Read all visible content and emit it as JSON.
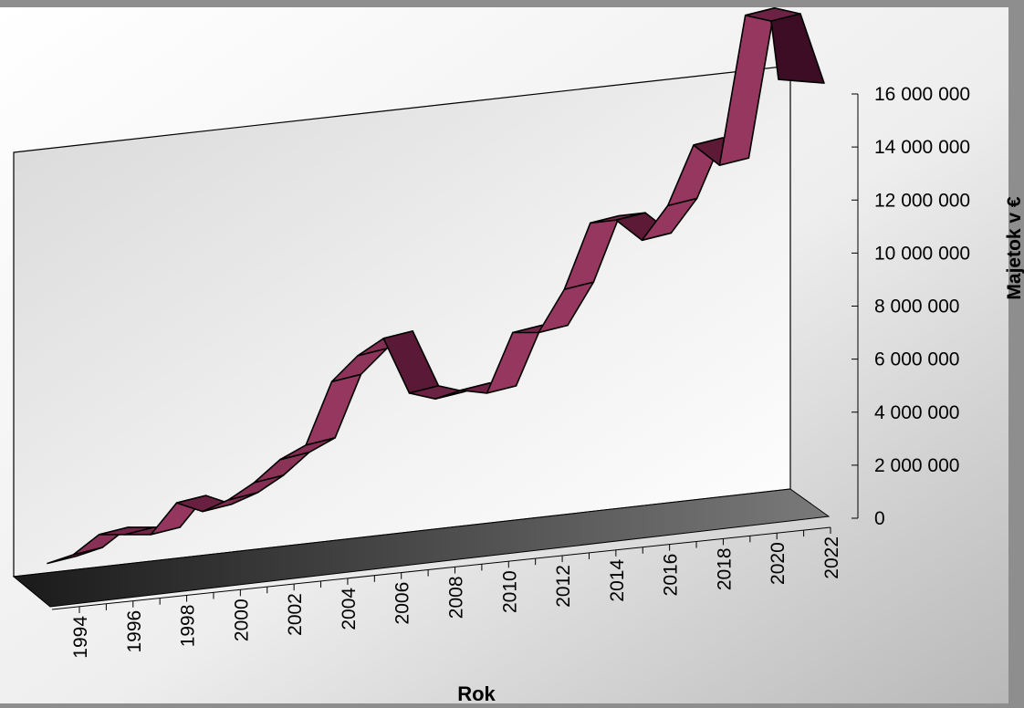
{
  "chart_data": {
    "type": "line",
    "style": "3d-ribbon",
    "x_title": "Rok",
    "y_title": "Majetok v €",
    "x": [
      1994,
      1995,
      1996,
      1997,
      1998,
      1999,
      2000,
      2001,
      2002,
      2003,
      2004,
      2005,
      2006,
      2007,
      2008,
      2009,
      2010,
      2011,
      2012,
      2013,
      2014,
      2015,
      2016,
      2017,
      2018,
      2019,
      2020,
      2021,
      2022
    ],
    "x_tick_labels": [
      "1994",
      "1996",
      "1998",
      "2000",
      "2002",
      "2004",
      "2006",
      "2008",
      "2010",
      "2012",
      "2014",
      "2016",
      "2018",
      "2020",
      "2022"
    ],
    "y_ticks": [
      "0",
      "2 000 000",
      "4 000 000",
      "6 000 000",
      "8 000 000",
      "10 000 000",
      "12 000 000",
      "14 000 000",
      "16 000 000"
    ],
    "ylim": [
      0,
      16000000
    ],
    "series": [
      {
        "values": [
          300000,
          500000,
          1100000,
          1000000,
          900000,
          1900000,
          1500000,
          1800000,
          2300000,
          3000000,
          3400000,
          5500000,
          6300000,
          6800000,
          4800000,
          4500000,
          4700000,
          4500000,
          6500000,
          6400000,
          7800000,
          10000000,
          10000000,
          9200000,
          10300000,
          12300000,
          11500000,
          16600000,
          16300000
        ],
        "color": "#5e1a3c"
      }
    ],
    "grid": false,
    "legend": "none"
  }
}
